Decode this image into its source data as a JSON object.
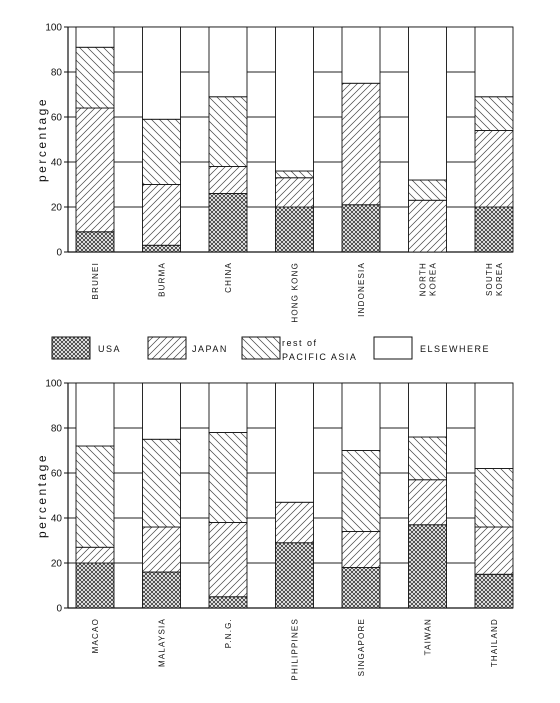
{
  "legend": {
    "usa": "USA",
    "japan": "JAPAN",
    "rest_line1": "rest of",
    "rest_line2": "PACIFIC ASIA",
    "elsewhere": "ELSEWHERE"
  },
  "chart_data": [
    {
      "type": "bar",
      "stacked": true,
      "ylabel": "percentage",
      "ylim": [
        0,
        100
      ],
      "yticks": [
        0,
        20,
        40,
        60,
        80,
        100
      ],
      "categories": [
        "BRUNEI",
        "BURMA",
        "CHINA",
        "HONG KONG",
        "INDONESIA",
        "NORTH KOREA",
        "SOUTH KOREA"
      ],
      "series": [
        {
          "name": "USA",
          "values": [
            9,
            3,
            26,
            20,
            21,
            0,
            20
          ]
        },
        {
          "name": "JAPAN",
          "values": [
            55,
            27,
            12,
            13,
            54,
            23,
            34
          ]
        },
        {
          "name": "rest of PACIFIC ASIA",
          "values": [
            27,
            29,
            31,
            3,
            0,
            9,
            15
          ]
        },
        {
          "name": "ELSEWHERE",
          "values": [
            9,
            41,
            31,
            64,
            25,
            68,
            31
          ]
        }
      ],
      "legend": "between panels"
    },
    {
      "type": "bar",
      "stacked": true,
      "ylabel": "percentage",
      "ylim": [
        0,
        100
      ],
      "yticks": [
        0,
        20,
        40,
        60,
        80,
        100
      ],
      "categories": [
        "MACAO",
        "MALAYSIA",
        "P.N.G.",
        "PHILIPPINES",
        "SINGAPORE",
        "TAIWAN",
        "THAILAND"
      ],
      "series": [
        {
          "name": "USA",
          "values": [
            20,
            16,
            5,
            29,
            18,
            37,
            15
          ]
        },
        {
          "name": "JAPAN",
          "values": [
            7,
            20,
            33,
            18,
            16,
            20,
            21
          ]
        },
        {
          "name": "rest of PACIFIC ASIA",
          "values": [
            45,
            39,
            40,
            0,
            36,
            19,
            26
          ]
        },
        {
          "name": "ELSEWHERE",
          "values": [
            28,
            25,
            22,
            53,
            30,
            24,
            38
          ]
        }
      ],
      "legend": "between panels"
    }
  ]
}
